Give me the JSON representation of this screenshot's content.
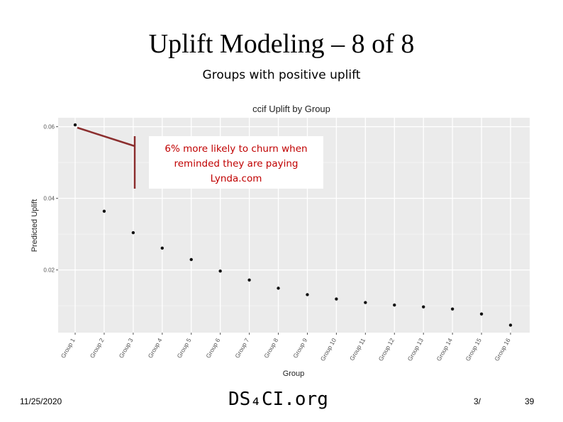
{
  "slide": {
    "title": "Uplift Modeling – 8 of 8",
    "subtitle": "Groups with positive uplift",
    "callout_lines": [
      "6% more likely to churn when",
      "reminded they are paying",
      "Lynda.com"
    ]
  },
  "footer": {
    "date": "11/25/2020",
    "site": "DS₄CI.org",
    "page": "3/",
    "total": "39"
  },
  "colors": {
    "callout_text": "#c00000",
    "callout_arrow": "#8b2e2e",
    "panel_background": "#ebebeb",
    "grid": "#ffffff",
    "point": "#111111"
  },
  "chart_data": {
    "type": "scatter",
    "title": "ccif Uplift by Group",
    "xlabel": "Group",
    "ylabel": "Predicted Uplift",
    "categories": [
      "Group 1",
      "Group 2",
      "Group 3",
      "Group 4",
      "Group 5",
      "Group 6",
      "Group 7",
      "Group 8",
      "Group 9",
      "Group 10",
      "Group 11",
      "Group 12",
      "Group 13",
      "Group 14",
      "Group 15",
      "Group 16"
    ],
    "values": [
      0.0605,
      0.0364,
      0.0304,
      0.0261,
      0.0229,
      0.0197,
      0.0172,
      0.0149,
      0.0131,
      0.0119,
      0.0109,
      0.0102,
      0.0097,
      0.0091,
      0.0077,
      0.0046
    ],
    "yticks": [
      0.02,
      0.04,
      0.06
    ],
    "ytick_labels": [
      "0.02",
      "0.04",
      "0.06"
    ],
    "ylim": [
      0.0025,
      0.0625
    ],
    "grid": true
  }
}
